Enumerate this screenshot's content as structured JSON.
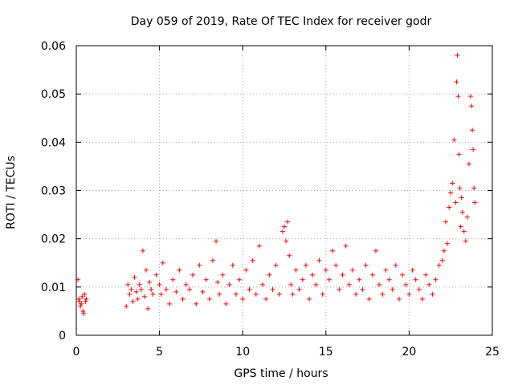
{
  "chart_data": {
    "type": "scatter",
    "title": "Day 059 of 2019, Rate Of TEC Index for receiver godr",
    "xlabel": "GPS time / hours",
    "ylabel": "ROTI / TECUs",
    "xlim": [
      0,
      25
    ],
    "ylim": [
      0,
      0.06
    ],
    "xticks": [
      0,
      5,
      10,
      15,
      20,
      25
    ],
    "xtick_labels": [
      "0",
      "5",
      "10",
      "15",
      "20",
      "25"
    ],
    "yticks": [
      0,
      0.01,
      0.02,
      0.03,
      0.04,
      0.05,
      0.06
    ],
    "ytick_labels": [
      "0",
      "0.01",
      "0.02",
      "0.03",
      "0.04",
      "0.05",
      "0.06"
    ],
    "grid": true,
    "marker": "+",
    "color": "#ff0000",
    "series": [
      {
        "name": "ROTI",
        "x": [
          0.1,
          0.15,
          0.2,
          0.25,
          0.3,
          0.35,
          0.4,
          0.45,
          0.5,
          0.55,
          0.6,
          3.0,
          3.1,
          3.2,
          3.3,
          3.4,
          3.5,
          3.6,
          3.7,
          3.8,
          3.9,
          4.0,
          4.1,
          4.2,
          4.3,
          4.4,
          4.5,
          4.6,
          4.8,
          5.0,
          5.1,
          5.2,
          5.4,
          5.6,
          5.8,
          6.0,
          6.2,
          6.4,
          6.6,
          6.8,
          7.0,
          7.2,
          7.4,
          7.6,
          7.8,
          8.0,
          8.2,
          8.4,
          8.5,
          8.6,
          8.8,
          9.0,
          9.2,
          9.4,
          9.6,
          9.8,
          10.0,
          10.2,
          10.4,
          10.6,
          10.8,
          11.0,
          11.2,
          11.4,
          11.6,
          11.8,
          12.0,
          12.2,
          12.4,
          12.5,
          12.6,
          12.7,
          12.8,
          12.9,
          13.0,
          13.2,
          13.4,
          13.6,
          13.8,
          14.0,
          14.2,
          14.4,
          14.6,
          14.8,
          15.0,
          15.2,
          15.4,
          15.6,
          15.8,
          16.0,
          16.2,
          16.4,
          16.6,
          16.8,
          17.0,
          17.2,
          17.4,
          17.6,
          17.8,
          18.0,
          18.2,
          18.4,
          18.6,
          18.8,
          19.0,
          19.2,
          19.4,
          19.6,
          19.8,
          20.0,
          20.2,
          20.4,
          20.6,
          20.8,
          21.0,
          21.2,
          21.4,
          21.6,
          21.8,
          22.0,
          22.1,
          22.2,
          22.3,
          22.4,
          22.5,
          22.6,
          22.7,
          22.8,
          22.85,
          22.9,
          22.95,
          23.0,
          23.05,
          23.1,
          23.15,
          23.2,
          23.3,
          23.4,
          23.5,
          23.6,
          23.7,
          23.75,
          23.8,
          23.85,
          23.9,
          23.95
        ],
        "y": [
          0.0115,
          0.0075,
          0.007,
          0.006,
          0.0065,
          0.008,
          0.005,
          0.0045,
          0.0085,
          0.007,
          0.0075,
          0.006,
          0.0105,
          0.0085,
          0.0095,
          0.007,
          0.012,
          0.009,
          0.0075,
          0.0105,
          0.0095,
          0.0175,
          0.008,
          0.0135,
          0.0055,
          0.011,
          0.0095,
          0.0085,
          0.0125,
          0.0105,
          0.0085,
          0.015,
          0.0095,
          0.0065,
          0.0115,
          0.009,
          0.0135,
          0.0075,
          0.0105,
          0.0095,
          0.0125,
          0.0065,
          0.0145,
          0.009,
          0.0115,
          0.0075,
          0.0155,
          0.0195,
          0.011,
          0.0085,
          0.0125,
          0.0065,
          0.0105,
          0.0145,
          0.0085,
          0.0115,
          0.0075,
          0.0135,
          0.0095,
          0.0155,
          0.0085,
          0.0185,
          0.0105,
          0.0075,
          0.0125,
          0.0095,
          0.0145,
          0.0085,
          0.0215,
          0.0225,
          0.0195,
          0.0235,
          0.0165,
          0.0105,
          0.0085,
          0.0135,
          0.0095,
          0.0115,
          0.0145,
          0.0075,
          0.0125,
          0.0105,
          0.0155,
          0.0085,
          0.0135,
          0.0115,
          0.0175,
          0.0145,
          0.0095,
          0.0125,
          0.0185,
          0.0105,
          0.0135,
          0.0085,
          0.0115,
          0.0095,
          0.0145,
          0.0075,
          0.0125,
          0.0175,
          0.0105,
          0.0085,
          0.0135,
          0.0115,
          0.0095,
          0.0145,
          0.0075,
          0.0125,
          0.0105,
          0.0085,
          0.0135,
          0.0115,
          0.0095,
          0.0075,
          0.0125,
          0.0105,
          0.0085,
          0.0115,
          0.0145,
          0.0155,
          0.0175,
          0.0235,
          0.019,
          0.0265,
          0.0295,
          0.0315,
          0.0405,
          0.0275,
          0.0525,
          0.058,
          0.0495,
          0.0375,
          0.0305,
          0.0225,
          0.0285,
          0.0255,
          0.0215,
          0.0195,
          0.0245,
          0.0355,
          0.0495,
          0.0475,
          0.0425,
          0.0385,
          0.0305,
          0.0275
        ]
      }
    ]
  }
}
